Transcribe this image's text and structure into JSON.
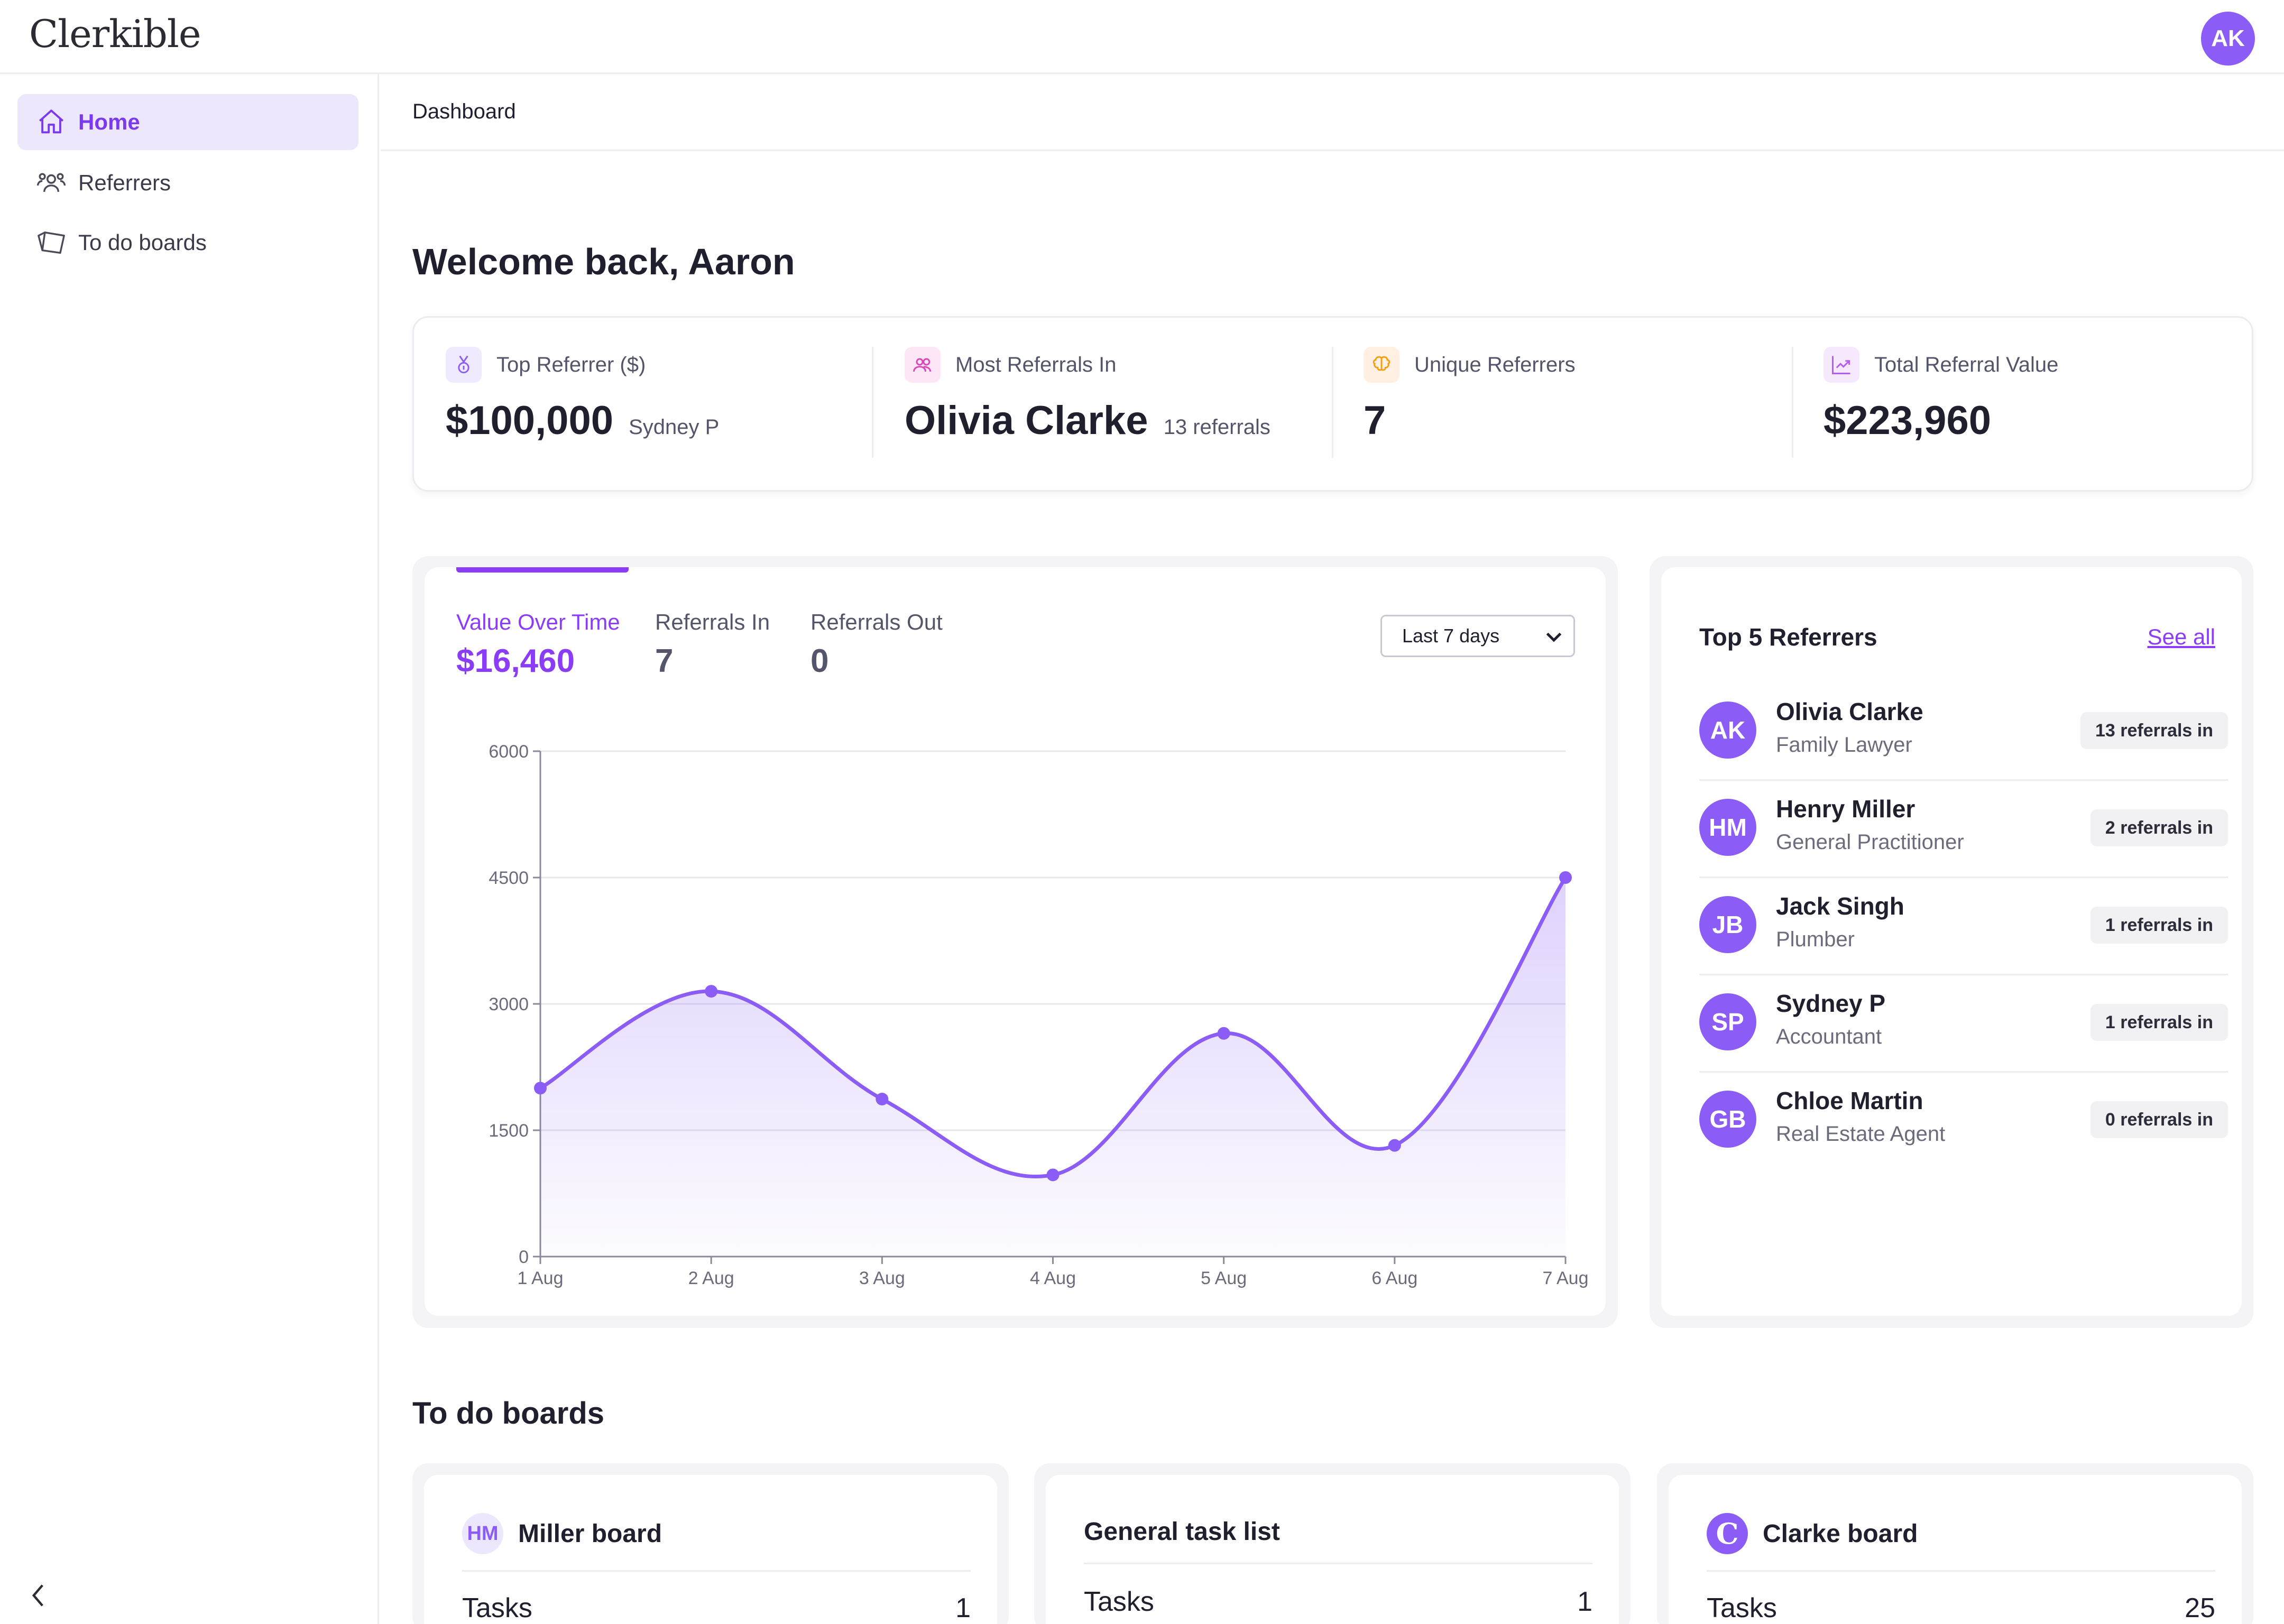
{
  "app": {
    "logo": "Clerkible",
    "user_initials": "AK"
  },
  "sidebar": {
    "items": [
      {
        "label": "Home",
        "icon": "home-icon",
        "active": true
      },
      {
        "label": "Referrers",
        "icon": "users-icon",
        "active": false
      },
      {
        "label": "To do boards",
        "icon": "board-icon",
        "active": false
      }
    ],
    "collapse_icon": "chevron-left-icon"
  },
  "breadcrumb": "Dashboard",
  "welcome": "Welcome back, Aaron",
  "stats": [
    {
      "label": "Top Referrer ($)",
      "value": "$100,000",
      "sub": "Sydney P",
      "icon": "medal-icon",
      "icon_bg": "#efeafd",
      "icon_color": "#8b5cf6"
    },
    {
      "label": "Most Referrals In",
      "value": "Olivia Clarke",
      "sub": "13 referrals",
      "icon": "people-icon",
      "icon_bg": "#fde7f6",
      "icon_color": "#d946b8"
    },
    {
      "label": "Unique Referrers",
      "value": "7",
      "sub": "",
      "icon": "brain-icon",
      "icon_bg": "#fff0e3",
      "icon_color": "#f59e0b"
    },
    {
      "label": "Total Referral Value",
      "value": "$223,960",
      "sub": "",
      "icon": "trend-chart-icon",
      "icon_bg": "#f6e9fd",
      "icon_color": "#b45cf0"
    }
  ],
  "chart_panel": {
    "tabs": [
      {
        "label": "Value Over Time",
        "value": "$16,460",
        "active": true
      },
      {
        "label": "Referrals In",
        "value": "7",
        "active": false
      },
      {
        "label": "Referrals Out",
        "value": "0",
        "active": false
      }
    ],
    "range_select": "Last 7 days"
  },
  "chart_data": {
    "type": "area",
    "x": [
      "1 Aug",
      "2 Aug",
      "3 Aug",
      "4 Aug",
      "5 Aug",
      "6 Aug",
      "7 Aug"
    ],
    "series": [
      {
        "values": [
          2000,
          3150,
          1870,
          970,
          2650,
          1320,
          4500
        ]
      }
    ],
    "y_ticks": [
      "0",
      "1500",
      "3000",
      "4500",
      "6000"
    ],
    "ylim": [
      0,
      6000
    ],
    "grid": true,
    "color": "#8b5cf6",
    "title": "",
    "xlabel": "",
    "ylabel": ""
  },
  "top_referrers": {
    "title": "Top 5 Referrers",
    "see_all": "See all",
    "items": [
      {
        "initials": "AK",
        "name": "Olivia Clarke",
        "role": "Family Lawyer",
        "badge": "13 referrals in"
      },
      {
        "initials": "HM",
        "name": "Henry Miller",
        "role": "General Practitioner",
        "badge": "2 referrals in"
      },
      {
        "initials": "JB",
        "name": "Jack Singh",
        "role": "Plumber",
        "badge": "1 referrals in"
      },
      {
        "initials": "SP",
        "name": "Sydney P",
        "role": "Accountant",
        "badge": "1 referrals in"
      },
      {
        "initials": "GB",
        "name": "Chloe Martin",
        "role": "Real Estate Agent",
        "badge": "0 referrals in"
      }
    ]
  },
  "todo": {
    "title": "To do boards",
    "boards": [
      {
        "name": "Miller board",
        "badge": "HM",
        "tasks_label": "Tasks",
        "tasks": "1"
      },
      {
        "name": "General task list",
        "badge": "",
        "tasks_label": "Tasks",
        "tasks": "1"
      },
      {
        "name": "Clarke board",
        "badge": "C",
        "tasks_label": "Tasks",
        "tasks": "25"
      }
    ]
  }
}
